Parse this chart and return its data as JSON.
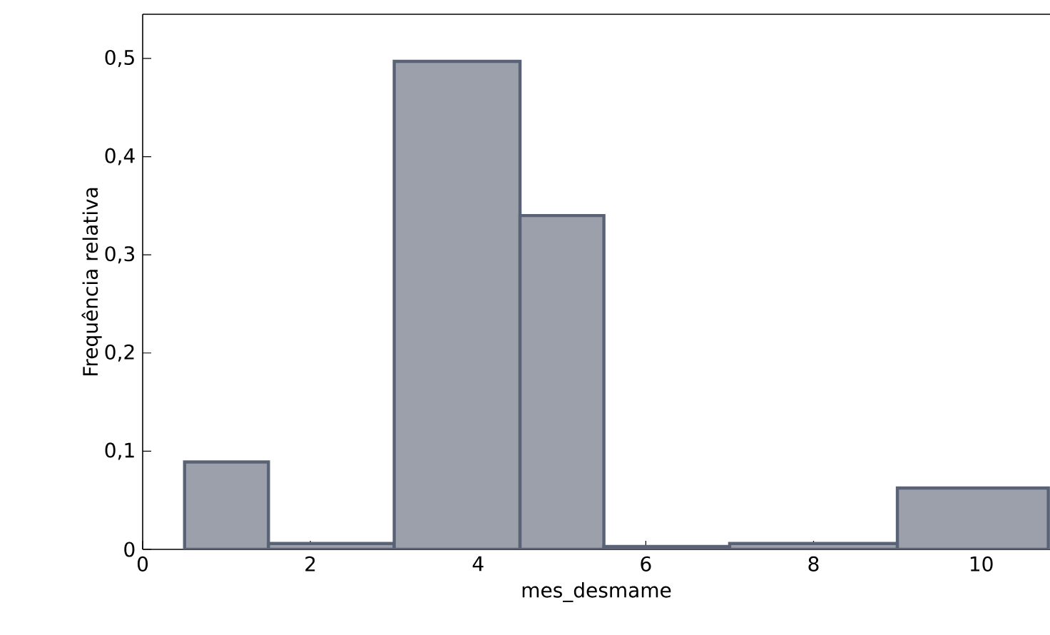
{
  "chart_data": {
    "type": "histogram",
    "xlabel": "mes_desmame",
    "ylabel": "Frequência relativa",
    "bins": [
      0.5,
      1.5,
      3,
      4.5,
      5.5,
      7,
      9,
      10.8
    ],
    "values": [
      0.089,
      0.006,
      0.497,
      0.34,
      0.003,
      0.006,
      0.0625
    ],
    "color": "#9ba0ab",
    "xlim": [
      0,
      10.82
    ],
    "xticks": [
      0,
      2,
      4,
      6,
      8,
      10
    ],
    "ylim": [
      0,
      0.545
    ],
    "yticks": [
      0,
      {
        "value": 0.1,
        "label": "0,1"
      },
      {
        "value": 0.2,
        "label": "0,2"
      },
      {
        "value": 0.3,
        "label": "0,3"
      },
      {
        "value": 0.4,
        "label": "0,4"
      },
      {
        "value": 0.5,
        "label": "0,5"
      }
    ],
    "grid": false
  }
}
